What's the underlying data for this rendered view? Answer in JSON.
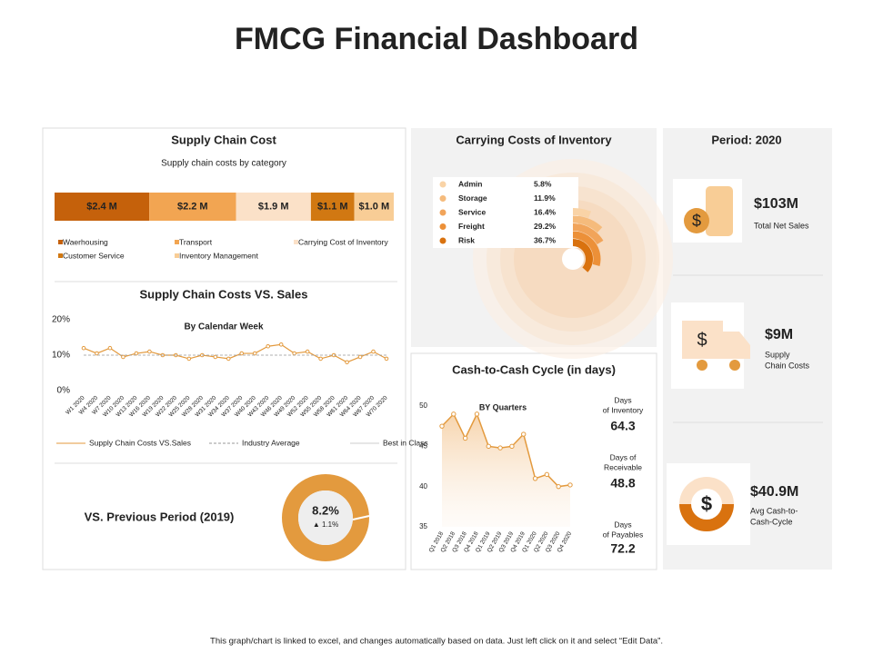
{
  "title": "FMCG Financial Dashboard",
  "footer": "This graph/chart is linked to excel, and changes automatically based on data. Just left click on it and select “Edit Data”.",
  "chart_data": [
    {
      "type": "stacked_bar",
      "title": "Supply Chain Cost",
      "subtitle": "Supply chain costs by category",
      "series": [
        {
          "name": "Waerhousing",
          "color": "#c5610b",
          "values": [
            2.4
          ],
          "value_labels": [
            "$2.4 M"
          ]
        },
        {
          "name": "Transport",
          "color": "#f2a552",
          "values": [
            2.2
          ],
          "value_labels": [
            "$2.2 M"
          ]
        },
        {
          "name": "Carrying Cost of Inventory",
          "color": "#fbe1c8",
          "values": [
            1.9
          ],
          "value_labels": [
            "$1.9 M"
          ]
        },
        {
          "name": "Customer Service",
          "color": "#d17812",
          "values": [
            1.1
          ],
          "value_labels": [
            "$1.1 M"
          ]
        },
        {
          "name": "Inventory Management",
          "color": "#f8cd96",
          "values": [
            1.0
          ],
          "value_labels": [
            "$1.0 M"
          ]
        }
      ]
    },
    {
      "type": "line",
      "title": "Supply Chain Costs VS. Sales",
      "subtitle": "By Calendar Week",
      "categories": [
        "W1 2020",
        "W4 2020",
        "W7 2020",
        "W10 2020",
        "W13 2020",
        "W16 2020",
        "W19 2020",
        "W22 2020",
        "W25 2020",
        "W28 2020",
        "W31 2020",
        "W34 2020",
        "W37 2020",
        "W40 2020",
        "W43 2020",
        "W46 2020",
        "W49 2020",
        "W52 2020",
        "W55 2020",
        "W58 2020",
        "W61 2020",
        "W64 2020",
        "W67 2020",
        "W70 2020"
      ],
      "ylim": [
        0,
        20
      ],
      "yticks": [
        {
          "value": 0,
          "label": "0%"
        },
        {
          "value": 10,
          "label": "10%"
        },
        {
          "value": 20,
          "label": "20%"
        }
      ],
      "series": [
        {
          "name": "Supply Chain Costs VS.Sales",
          "color": "#e39a3e",
          "values": [
            12,
            10.5,
            12,
            9.5,
            10.5,
            11,
            10,
            10,
            9,
            10,
            9.5,
            9,
            10.5,
            10.5,
            12.5,
            13,
            10.5,
            11,
            9,
            10,
            8,
            9.5,
            11,
            9
          ]
        },
        {
          "name": "Industry Average",
          "color": "#999999",
          "dashed": true,
          "values": [
            10,
            10,
            10,
            10,
            10,
            10,
            10,
            10,
            10,
            10,
            10,
            10,
            10,
            10,
            10,
            10,
            10,
            10,
            10,
            10,
            10,
            10,
            10,
            10
          ]
        },
        {
          "name": "Best in Class",
          "color": "#cccccc",
          "values": [
            null,
            null,
            null,
            null,
            null,
            null,
            null,
            null,
            null,
            null,
            null,
            null,
            null,
            null,
            null,
            null,
            null,
            null,
            null,
            null,
            null,
            null,
            null,
            null
          ]
        }
      ]
    },
    {
      "type": "radial_bar",
      "title": "Carrying Costs of Inventory",
      "categories": [
        "Admin",
        "Storage",
        "Service",
        "Freight",
        "Risk"
      ],
      "values": [
        5.8,
        11.9,
        16.4,
        29.2,
        36.7
      ],
      "value_labels": [
        "5.8%",
        "11.9%",
        "16.4%",
        "29.2%",
        "36.7%"
      ],
      "colors": [
        "#f9d3a6",
        "#f5bb7c",
        "#f1a45a",
        "#ec9038",
        "#d9720f"
      ]
    },
    {
      "type": "area",
      "title": "Cash-to-Cash Cycle (in days)",
      "subtitle": "BY Quarters",
      "categories": [
        "Q1 2018",
        "Q2 2018",
        "Q3 2018",
        "Q4 2018",
        "Q1 2019",
        "Q2 2019",
        "Q3 2019",
        "Q4 2019",
        "Q1 2020",
        "Q2 2020",
        "Q3 2020",
        "Q4 2020"
      ],
      "values": [
        47.5,
        49,
        46,
        49,
        45,
        44.8,
        45,
        46.5,
        41,
        41.5,
        40,
        40.2
      ],
      "color": "#e39a3e",
      "ylim": [
        35,
        50
      ],
      "yticks": [
        35,
        40,
        45,
        50
      ]
    }
  ],
  "comparison": {
    "title": "VS. Previous Period (2019)",
    "value": "8.2%",
    "change": "▲ 1.1%"
  },
  "cash_cycle_metrics": [
    {
      "label": [
        "Days",
        "of Inventory"
      ],
      "value": "64.3"
    },
    {
      "label": [
        "Days of",
        "Receivable"
      ],
      "value": "48.8"
    },
    {
      "label": [
        "Days",
        "of Payables"
      ],
      "value": "72.2"
    }
  ],
  "period": {
    "title": "Period: 2020",
    "kpis": [
      {
        "value": "$103M",
        "label": [
          "Total Net Sales"
        ]
      },
      {
        "value": "$9M",
        "label": [
          "Supply",
          "Chain Costs"
        ]
      },
      {
        "value": "$40.9M",
        "label": [
          "Avg Cash-to-",
          "Cash-Cycle"
        ]
      }
    ]
  }
}
